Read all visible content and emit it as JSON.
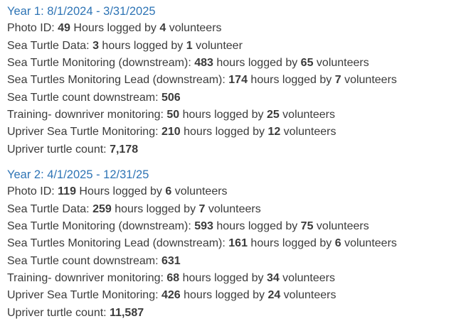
{
  "colors": {
    "heading": "#2e74b5",
    "body": "#3b3b3b",
    "background": "#ffffff"
  },
  "document": {
    "sections": [
      {
        "heading": "Year 1: 8/1/2024 - 3/31/2025",
        "lines": [
          {
            "segments": [
              {
                "text": "Photo ID: ",
                "bold": false
              },
              {
                "text": "49",
                "bold": true
              },
              {
                "text": " Hours logged by ",
                "bold": false
              },
              {
                "text": "4",
                "bold": true
              },
              {
                "text": " volunteers",
                "bold": false
              }
            ]
          },
          {
            "segments": [
              {
                "text": "Sea Turtle Data: ",
                "bold": false
              },
              {
                "text": "3",
                "bold": true
              },
              {
                "text": " hours logged by ",
                "bold": false
              },
              {
                "text": "1",
                "bold": true
              },
              {
                "text": " volunteer",
                "bold": false
              }
            ]
          },
          {
            "segments": [
              {
                "text": "Sea Turtle Monitoring (downstream): ",
                "bold": false
              },
              {
                "text": "483",
                "bold": true
              },
              {
                "text": " hours logged by ",
                "bold": false
              },
              {
                "text": "65",
                "bold": true
              },
              {
                "text": " volunteers",
                "bold": false
              }
            ]
          },
          {
            "segments": [
              {
                "text": "Sea Turtles Monitoring Lead (downstream): ",
                "bold": false
              },
              {
                "text": "174",
                "bold": true
              },
              {
                "text": " hours logged by ",
                "bold": false
              },
              {
                "text": "7",
                "bold": true
              },
              {
                "text": " volunteers",
                "bold": false
              }
            ]
          },
          {
            "segments": [
              {
                "text": "Sea Turtle count downstream: ",
                "bold": false
              },
              {
                "text": "506",
                "bold": true
              }
            ]
          },
          {
            "segments": [
              {
                "text": "Training- downriver monitoring: ",
                "bold": false
              },
              {
                "text": "50",
                "bold": true
              },
              {
                "text": " hours logged by ",
                "bold": false
              },
              {
                "text": "25",
                "bold": true
              },
              {
                "text": " volunteers",
                "bold": false
              }
            ]
          },
          {
            "segments": [
              {
                "text": "Upriver Sea Turtle Monitoring: ",
                "bold": false
              },
              {
                "text": "210",
                "bold": true
              },
              {
                "text": " hours logged by ",
                "bold": false
              },
              {
                "text": "12",
                "bold": true
              },
              {
                "text": " volunteers",
                "bold": false
              }
            ]
          },
          {
            "segments": [
              {
                "text": "Upriver turtle count: ",
                "bold": false
              },
              {
                "text": "7,178",
                "bold": true
              }
            ]
          }
        ]
      },
      {
        "heading": "Year 2: 4/1/2025 - 12/31/25",
        "lines": [
          {
            "segments": [
              {
                "text": "Photo ID: ",
                "bold": false
              },
              {
                "text": "119",
                "bold": true
              },
              {
                "text": " Hours logged by ",
                "bold": false
              },
              {
                "text": "6",
                "bold": true
              },
              {
                "text": " volunteers",
                "bold": false
              }
            ]
          },
          {
            "segments": [
              {
                "text": "Sea Turtle Data: ",
                "bold": false
              },
              {
                "text": "259",
                "bold": true
              },
              {
                "text": " hours logged by ",
                "bold": false
              },
              {
                "text": "7",
                "bold": true
              },
              {
                "text": " volunteers",
                "bold": false
              }
            ]
          },
          {
            "segments": [
              {
                "text": "Sea Turtle Monitoring (downstream): ",
                "bold": false
              },
              {
                "text": "593",
                "bold": true
              },
              {
                "text": " hours logged by ",
                "bold": false
              },
              {
                "text": "75",
                "bold": true
              },
              {
                "text": " volunteers",
                "bold": false
              }
            ]
          },
          {
            "segments": [
              {
                "text": "Sea Turtles Monitoring Lead (downstream): ",
                "bold": false
              },
              {
                "text": "161",
                "bold": true
              },
              {
                "text": " hours logged by ",
                "bold": false
              },
              {
                "text": "6",
                "bold": true
              },
              {
                "text": " volunteers",
                "bold": false
              }
            ]
          },
          {
            "segments": [
              {
                "text": "Sea Turtle count downstream: ",
                "bold": false
              },
              {
                "text": "631",
                "bold": true
              }
            ]
          },
          {
            "segments": [
              {
                "text": "Training- downriver monitoring: ",
                "bold": false
              },
              {
                "text": "68",
                "bold": true
              },
              {
                "text": " hours logged by ",
                "bold": false
              },
              {
                "text": "34",
                "bold": true
              },
              {
                "text": " volunteers",
                "bold": false
              }
            ]
          },
          {
            "segments": [
              {
                "text": "Upriver Sea Turtle Monitoring: ",
                "bold": false
              },
              {
                "text": "426",
                "bold": true
              },
              {
                "text": " hours logged by ",
                "bold": false
              },
              {
                "text": "24",
                "bold": true
              },
              {
                "text": " volunteers",
                "bold": false
              }
            ]
          },
          {
            "segments": [
              {
                "text": "Upriver turtle count: ",
                "bold": false
              },
              {
                "text": "11,587",
                "bold": true
              }
            ]
          }
        ]
      }
    ]
  }
}
